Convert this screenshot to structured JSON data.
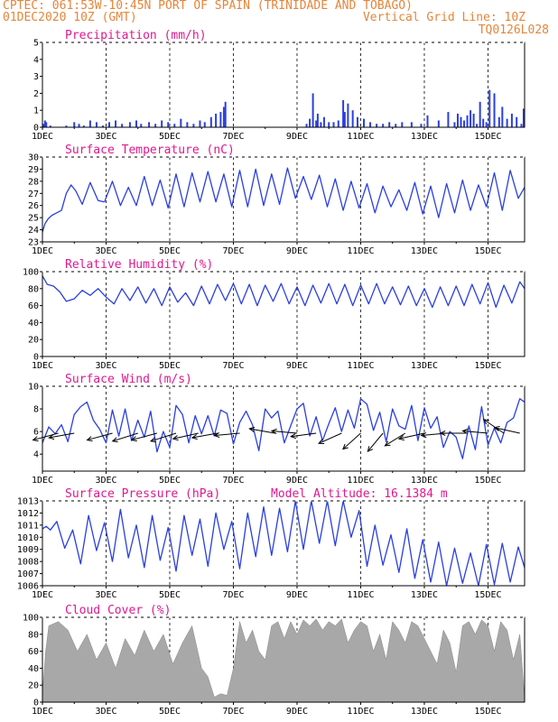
{
  "header": {
    "line1": "CPTEC:  061:53W-10:45N  PORT OF SPAIN (TRINIDADE AND TOBAGO)",
    "line2": "01DEC2020 10Z (GMT)",
    "grid_note": "Vertical Grid Line: 10Z",
    "code": "TQ0126L028"
  },
  "colors": {
    "header": "#e5853a",
    "title": "#e0188f",
    "series": "#2a3fe0",
    "cloud": "#a8a8a8"
  },
  "x_axis": {
    "ticks": [
      "1DEC",
      "3DEC",
      "5DEC",
      "7DEC",
      "9DEC",
      "11DEC",
      "13DEC",
      "15DEC"
    ],
    "tick_days": [
      0,
      2,
      4,
      6,
      8,
      10,
      12,
      14
    ],
    "range_days": [
      0,
      15.15
    ]
  },
  "chart_data": [
    {
      "type": "bar",
      "title": "Precipitation (mm/h)",
      "ylim": [
        0,
        5
      ],
      "yticks": [
        0,
        1,
        2,
        3,
        4,
        5
      ],
      "grid": "dashed-vertical",
      "x": [
        0.04,
        0.08,
        0.12,
        0.25,
        0.75,
        1.0,
        1.15,
        1.3,
        1.5,
        1.7,
        1.9,
        2.1,
        2.3,
        2.5,
        2.75,
        2.95,
        3.1,
        3.35,
        3.55,
        3.75,
        3.95,
        4.15,
        4.35,
        4.55,
        4.75,
        4.95,
        5.1,
        5.3,
        5.45,
        5.6,
        5.7,
        5.75,
        8.3,
        8.4,
        8.5,
        8.6,
        8.65,
        8.75,
        8.85,
        9.0,
        9.15,
        9.3,
        9.45,
        9.5,
        9.6,
        9.75,
        9.9,
        10.1,
        10.3,
        10.5,
        10.7,
        10.9,
        11.1,
        11.3,
        11.6,
        11.9,
        12.1,
        12.45,
        12.75,
        12.95,
        13.05,
        13.15,
        13.25,
        13.35,
        13.45,
        13.55,
        13.65,
        13.75,
        13.85,
        13.95,
        14.05,
        14.2,
        14.35,
        14.45,
        14.6,
        14.75,
        14.9,
        15.05,
        15.12
      ],
      "values": [
        0.2,
        0.4,
        0.3,
        0.1,
        0.1,
        0.3,
        0.2,
        0.1,
        0.4,
        0.3,
        0.1,
        0.3,
        0.4,
        0.2,
        0.3,
        0.4,
        0.2,
        0.3,
        0.2,
        0.4,
        0.3,
        0.2,
        0.5,
        0.3,
        0.2,
        0.4,
        0.3,
        0.6,
        0.8,
        0.9,
        1.2,
        1.5,
        0.2,
        0.5,
        2.0,
        0.4,
        0.8,
        0.3,
        0.6,
        0.3,
        0.3,
        0.4,
        1.6,
        0.9,
        1.4,
        1.0,
        0.6,
        0.5,
        0.3,
        0.2,
        0.2,
        0.3,
        0.2,
        0.3,
        0.3,
        0.2,
        0.7,
        0.4,
        0.9,
        0.3,
        0.8,
        0.6,
        0.4,
        0.7,
        1.0,
        0.8,
        0.2,
        1.5,
        0.5,
        0.3,
        2.2,
        2.0,
        0.6,
        1.2,
        0.5,
        0.8,
        0.6,
        0.2,
        1.1
      ]
    },
    {
      "type": "line",
      "title": "Surface Temperature (nC)",
      "ylim": [
        23,
        30
      ],
      "yticks": [
        23,
        24,
        25,
        26,
        27,
        28,
        29,
        30
      ],
      "grid": "dashed-vertical",
      "x": [
        0,
        0.08,
        0.18,
        0.3,
        0.45,
        0.6,
        0.75,
        0.9,
        1.05,
        1.25,
        1.5,
        1.75,
        1.95,
        2.2,
        2.45,
        2.7,
        2.95,
        3.2,
        3.45,
        3.7,
        3.95,
        4.2,
        4.45,
        4.7,
        4.95,
        5.2,
        5.45,
        5.7,
        5.95,
        6.2,
        6.45,
        6.7,
        6.95,
        7.2,
        7.45,
        7.7,
        7.95,
        8.2,
        8.45,
        8.7,
        8.95,
        9.2,
        9.45,
        9.7,
        9.95,
        10.2,
        10.45,
        10.7,
        10.95,
        11.2,
        11.45,
        11.7,
        11.95,
        12.2,
        12.45,
        12.7,
        12.95,
        13.2,
        13.45,
        13.7,
        13.95,
        14.2,
        14.45,
        14.7,
        14.95,
        15.15
      ],
      "values": [
        23.8,
        24.5,
        24.9,
        25.2,
        25.4,
        25.6,
        27.0,
        27.7,
        27.2,
        26.1,
        27.9,
        26.4,
        26.3,
        28.0,
        26.0,
        27.5,
        26.0,
        28.4,
        26.0,
        28.1,
        25.8,
        28.6,
        25.9,
        28.7,
        26.3,
        28.8,
        26.3,
        28.6,
        25.9,
        28.9,
        25.9,
        29.0,
        26.0,
        28.6,
        26.1,
        29.1,
        26.6,
        28.4,
        26.5,
        28.5,
        25.9,
        28.2,
        25.6,
        28.0,
        25.8,
        27.8,
        25.4,
        27.6,
        25.9,
        27.3,
        25.6,
        27.9,
        25.3,
        27.6,
        25.0,
        27.8,
        25.4,
        28.1,
        25.6,
        27.7,
        25.9,
        28.7,
        25.6,
        28.9,
        26.6,
        27.5
      ]
    },
    {
      "type": "line",
      "title": "Relative Humidity (%)",
      "ylim": [
        0,
        100
      ],
      "yticks": [
        0,
        20,
        40,
        60,
        80,
        100
      ],
      "grid": "dashed-vertical",
      "x": [
        0,
        0.15,
        0.35,
        0.55,
        0.75,
        1.0,
        1.25,
        1.5,
        1.75,
        2.0,
        2.25,
        2.5,
        2.75,
        3.0,
        3.25,
        3.5,
        3.75,
        4.0,
        4.25,
        4.5,
        4.75,
        5.0,
        5.25,
        5.5,
        5.75,
        6.0,
        6.25,
        6.5,
        6.75,
        7.0,
        7.25,
        7.5,
        7.75,
        8.0,
        8.25,
        8.5,
        8.75,
        9.0,
        9.25,
        9.5,
        9.75,
        10.0,
        10.25,
        10.5,
        10.75,
        11.0,
        11.25,
        11.5,
        11.75,
        12.0,
        12.25,
        12.5,
        12.75,
        13.0,
        13.25,
        13.5,
        13.75,
        14.0,
        14.25,
        14.5,
        14.75,
        15.0,
        15.15
      ],
      "values": [
        95,
        85,
        83,
        76,
        65,
        68,
        78,
        72,
        80,
        70,
        62,
        80,
        66,
        82,
        63,
        80,
        60,
        82,
        64,
        75,
        60,
        83,
        62,
        85,
        66,
        86,
        62,
        85,
        60,
        84,
        65,
        86,
        62,
        82,
        60,
        84,
        63,
        86,
        62,
        85,
        60,
        84,
        62,
        86,
        62,
        82,
        61,
        83,
        60,
        80,
        58,
        82,
        60,
        83,
        60,
        85,
        62,
        87,
        58,
        84,
        63,
        88,
        80
      ]
    },
    {
      "type": "line",
      "title": "Surface Wind (m/s)",
      "ylim": [
        2.5,
        10
      ],
      "yticks": [
        4,
        6,
        8,
        10
      ],
      "grid": "dashed-vertical",
      "x": [
        0,
        0.2,
        0.4,
        0.6,
        0.8,
        1.0,
        1.2,
        1.4,
        1.6,
        1.8,
        2.0,
        2.2,
        2.4,
        2.6,
        2.8,
        3.0,
        3.2,
        3.4,
        3.6,
        3.8,
        4.0,
        4.2,
        4.4,
        4.6,
        4.8,
        5.0,
        5.2,
        5.4,
        5.6,
        5.8,
        6.0,
        6.2,
        6.4,
        6.6,
        6.8,
        7.0,
        7.2,
        7.4,
        7.6,
        7.8,
        8.0,
        8.2,
        8.4,
        8.6,
        8.8,
        9.0,
        9.2,
        9.4,
        9.6,
        9.8,
        10.0,
        10.2,
        10.4,
        10.6,
        10.8,
        11.0,
        11.2,
        11.4,
        11.6,
        11.8,
        12.0,
        12.2,
        12.4,
        12.6,
        12.8,
        13.0,
        13.2,
        13.4,
        13.6,
        13.8,
        14.0,
        14.2,
        14.4,
        14.6,
        14.8,
        15.0,
        15.15
      ],
      "values": [
        5.0,
        6.4,
        5.8,
        6.6,
        5.1,
        7.5,
        8.2,
        8.6,
        7.0,
        6.2,
        5.0,
        7.9,
        5.6,
        8.0,
        5.2,
        7.0,
        5.5,
        7.8,
        4.2,
        6.0,
        4.6,
        8.3,
        7.5,
        5.0,
        7.4,
        5.8,
        7.4,
        5.6,
        7.9,
        7.6,
        4.9,
        6.8,
        7.8,
        6.6,
        4.3,
        8.0,
        7.2,
        7.8,
        5.0,
        6.5,
        8.0,
        8.5,
        5.6,
        7.3,
        5.2,
        6.7,
        8.1,
        6.0,
        7.9,
        6.3,
        8.9,
        8.4,
        6.1,
        7.7,
        5.1,
        8.0,
        6.5,
        6.2,
        8.3,
        5.2,
        8.1,
        6.3,
        7.3,
        4.6,
        6.0,
        5.5,
        3.6,
        6.5,
        4.4,
        8.2,
        4.8,
        6.3,
        5.0,
        6.8,
        7.2,
        8.9,
        8.6
      ]
    },
    {
      "type": "line",
      "title": "Surface Pressure (hPa)",
      "annotation": "Model Altitude: 16.1384 m",
      "ylim": [
        1006,
        1013
      ],
      "yticks": [
        1006,
        1007,
        1008,
        1009,
        1010,
        1011,
        1012,
        1013
      ],
      "grid": "dashed-vertical",
      "x": [
        0,
        0.12,
        0.25,
        0.45,
        0.7,
        0.95,
        1.2,
        1.45,
        1.7,
        1.95,
        2.2,
        2.45,
        2.7,
        2.95,
        3.2,
        3.45,
        3.7,
        3.95,
        4.2,
        4.45,
        4.7,
        4.95,
        5.2,
        5.45,
        5.7,
        5.95,
        6.2,
        6.45,
        6.7,
        6.95,
        7.2,
        7.45,
        7.7,
        7.95,
        8.2,
        8.45,
        8.7,
        8.95,
        9.2,
        9.45,
        9.7,
        9.95,
        10.2,
        10.45,
        10.7,
        10.95,
        11.2,
        11.45,
        11.7,
        11.95,
        12.2,
        12.45,
        12.7,
        12.95,
        13.2,
        13.45,
        13.7,
        13.95,
        14.2,
        14.45,
        14.7,
        14.95,
        15.15
      ],
      "values": [
        1010.7,
        1010.9,
        1010.6,
        1011.3,
        1009.1,
        1010.6,
        1007.8,
        1011.8,
        1008.9,
        1011.2,
        1008.0,
        1012.3,
        1008.3,
        1011.0,
        1007.5,
        1011.8,
        1008.1,
        1010.8,
        1007.2,
        1011.8,
        1008.5,
        1011.5,
        1007.6,
        1012.0,
        1009.0,
        1011.3,
        1007.4,
        1012.0,
        1008.4,
        1012.5,
        1008.5,
        1012.4,
        1008.8,
        1013.0,
        1009.0,
        1013.0,
        1009.5,
        1013.0,
        1009.3,
        1013.0,
        1010.0,
        1012.2,
        1007.6,
        1011.0,
        1007.7,
        1010.2,
        1007.1,
        1010.7,
        1006.6,
        1009.8,
        1006.3,
        1009.6,
        1006.0,
        1009.1,
        1006.2,
        1008.7,
        1006.0,
        1009.4,
        1006.1,
        1009.5,
        1006.3,
        1009.2,
        1007.5
      ]
    },
    {
      "type": "area",
      "title": "Cloud Cover (%)",
      "ylim": [
        0,
        100
      ],
      "yticks": [
        0,
        20,
        40,
        60,
        80,
        100
      ],
      "grid": "dashed-vertical",
      "x": [
        0,
        0.1,
        0.2,
        0.5,
        0.8,
        1.1,
        1.4,
        1.7,
        2.0,
        2.3,
        2.6,
        2.9,
        3.2,
        3.5,
        3.8,
        4.1,
        4.4,
        4.7,
        5.0,
        5.2,
        5.4,
        5.6,
        5.8,
        6.0,
        6.2,
        6.4,
        6.6,
        6.8,
        7.0,
        7.2,
        7.4,
        7.6,
        7.8,
        8.0,
        8.2,
        8.4,
        8.6,
        8.8,
        9.0,
        9.2,
        9.4,
        9.6,
        9.8,
        10.0,
        10.2,
        10.4,
        10.6,
        10.8,
        11.0,
        11.2,
        11.4,
        11.6,
        11.8,
        12.0,
        12.2,
        12.4,
        12.6,
        12.8,
        13.0,
        13.2,
        13.4,
        13.6,
        13.8,
        14.0,
        14.2,
        14.4,
        14.6,
        14.8,
        15.0,
        15.15
      ],
      "values": [
        10,
        60,
        90,
        95,
        85,
        60,
        80,
        50,
        70,
        40,
        75,
        55,
        85,
        60,
        80,
        45,
        70,
        90,
        40,
        30,
        6,
        10,
        8,
        40,
        95,
        70,
        85,
        60,
        50,
        90,
        95,
        75,
        95,
        80,
        97,
        90,
        98,
        85,
        95,
        90,
        98,
        70,
        85,
        95,
        90,
        60,
        80,
        50,
        95,
        85,
        70,
        95,
        90,
        75,
        60,
        45,
        85,
        70,
        35,
        90,
        95,
        80,
        97,
        90,
        60,
        95,
        85,
        50,
        80,
        5
      ]
    }
  ],
  "wind_vectors": [
    {
      "x": 0.5,
      "u": -1.0,
      "v": -0.3
    },
    {
      "x": 1.0,
      "u": -1.0,
      "v": -0.2
    },
    {
      "x": 2.2,
      "u": -1.0,
      "v": -0.3
    },
    {
      "x": 3.0,
      "u": -1.0,
      "v": -0.35
    },
    {
      "x": 3.6,
      "u": -1.0,
      "v": -0.3
    },
    {
      "x": 4.2,
      "u": -1.0,
      "v": -0.35
    },
    {
      "x": 4.9,
      "u": -1.0,
      "v": -0.25
    },
    {
      "x": 5.5,
      "u": -1.0,
      "v": -0.2
    },
    {
      "x": 6.2,
      "u": -1.0,
      "v": -0.1
    },
    {
      "x": 7.3,
      "u": -1.0,
      "v": 0.2
    },
    {
      "x": 8.0,
      "u": -1.0,
      "v": 0.1
    },
    {
      "x": 8.6,
      "u": -1.0,
      "v": -0.15
    },
    {
      "x": 9.4,
      "u": -0.9,
      "v": -0.45
    },
    {
      "x": 10.0,
      "u": -0.7,
      "v": -0.7
    },
    {
      "x": 10.7,
      "u": -0.6,
      "v": -0.8
    },
    {
      "x": 11.4,
      "u": -0.8,
      "v": -0.55
    },
    {
      "x": 12.0,
      "u": -1.0,
      "v": -0.25
    },
    {
      "x": 12.7,
      "u": -1.0,
      "v": -0.1
    },
    {
      "x": 13.3,
      "u": -1.0,
      "v": 0.0
    },
    {
      "x": 14.0,
      "u": -1.0,
      "v": 0.1
    },
    {
      "x": 14.5,
      "u": -0.8,
      "v": 0.6
    },
    {
      "x": 15.0,
      "u": -1.0,
      "v": 0.25
    }
  ]
}
